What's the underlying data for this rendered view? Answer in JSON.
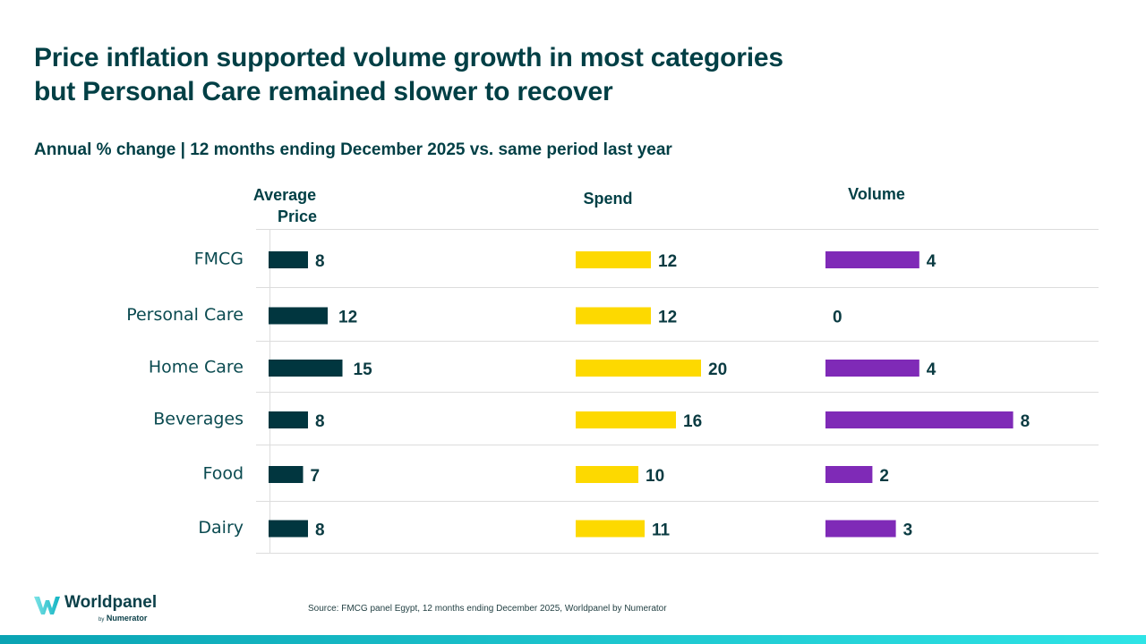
{
  "header": {
    "title_line1": "Price inflation supported volume growth in most categories",
    "title_line2": "but Personal Care remained slower to recover",
    "subtitle": "Annual % change | 12 months ending December 2025 vs. same period last year"
  },
  "columns": {
    "price_line1": "Average",
    "price_line2": "Price",
    "spend": "Spend",
    "volume": "Volume"
  },
  "colors": {
    "price": "#01363f",
    "spend": "#fdd900",
    "volume": "#7f2ab7",
    "text": "#003f45",
    "gridline": "#dcdcdc"
  },
  "chart_data": {
    "type": "bar",
    "orientation": "horizontal",
    "title": "Price inflation supported volume growth in most categories but Personal Care remained slower to recover",
    "subtitle": "Annual % change | 12 months ending December 2025 vs. same period last year",
    "categories": [
      "FMCG",
      "Personal Care",
      "Home Care",
      "Beverages",
      "Food",
      "Dairy"
    ],
    "series": [
      {
        "name": "Average Price",
        "values": [
          8,
          12,
          15,
          8,
          7,
          8
        ]
      },
      {
        "name": "Spend",
        "values": [
          12,
          12,
          20,
          16,
          10,
          11
        ]
      },
      {
        "name": "Volume",
        "values": [
          4,
          0,
          4,
          8,
          2,
          3
        ]
      }
    ],
    "xlabel": "",
    "ylabel": "",
    "grid": true,
    "legend": "column-headers"
  },
  "footer": {
    "logo_name": "Worldpanel",
    "logo_by": "by",
    "logo_sub": "Numerator",
    "source": "Source: FMCG panel Egypt, 12 months ending December 2025, Worldpanel by Numerator"
  }
}
